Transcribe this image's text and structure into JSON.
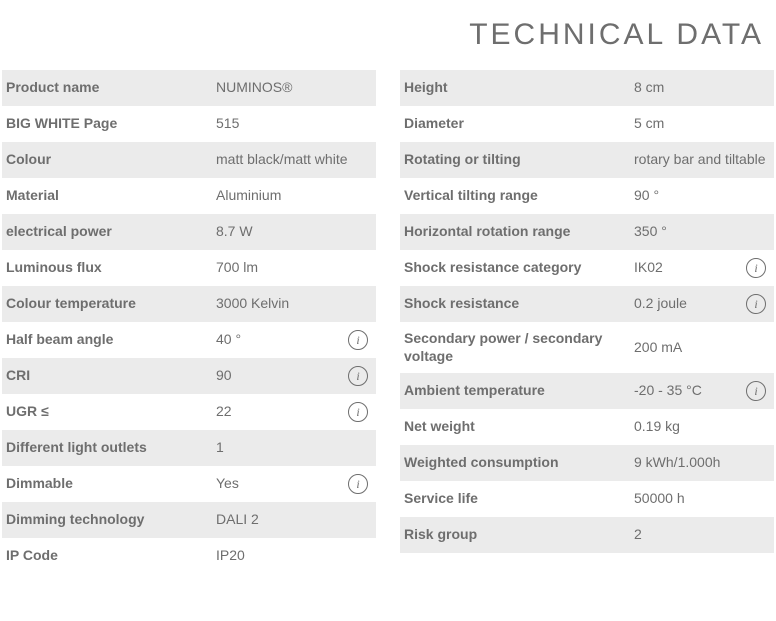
{
  "title": "TECHNICAL DATA",
  "colors": {
    "row_bg_odd": "#ebebeb",
    "row_bg_even": "#ffffff",
    "text": "#6e6e6e"
  },
  "left": [
    {
      "label": "Product name",
      "value": "NUMINOS®",
      "info": false
    },
    {
      "label": "BIG WHITE Page",
      "value": "515",
      "info": false
    },
    {
      "label": "Colour",
      "value": "matt black/matt white",
      "info": false
    },
    {
      "label": "Material",
      "value": "Aluminium",
      "info": false
    },
    {
      "label": "electrical power",
      "value": "8.7 W",
      "info": false
    },
    {
      "label": "Luminous flux",
      "value": "700 lm",
      "info": false
    },
    {
      "label": "Colour temperature",
      "value": "3000 Kelvin",
      "info": false
    },
    {
      "label": "Half beam angle",
      "value": "40 °",
      "info": true
    },
    {
      "label": "CRI",
      "value": "90",
      "info": true
    },
    {
      "label": "UGR ≤",
      "value": "22",
      "info": true
    },
    {
      "label": "Different light outlets",
      "value": "1",
      "info": false
    },
    {
      "label": "Dimmable",
      "value": "Yes",
      "info": true
    },
    {
      "label": "Dimming technology",
      "value": "DALI 2",
      "info": false
    },
    {
      "label": "IP Code",
      "value": "IP20",
      "info": false
    }
  ],
  "right": [
    {
      "label": "Height",
      "value": "8 cm",
      "info": false
    },
    {
      "label": "Diameter",
      "value": "5 cm",
      "info": false
    },
    {
      "label": "Rotating or tilting",
      "value": "rotary bar and tiltable",
      "info": false
    },
    {
      "label": "Vertical tilting range",
      "value": "90 °",
      "info": false
    },
    {
      "label": "Horizontal rotation range",
      "value": "350 °",
      "info": false
    },
    {
      "label": "Shock resistance category",
      "value": "IK02",
      "info": true
    },
    {
      "label": "Shock resistance",
      "value": "0.2 joule",
      "info": true
    },
    {
      "label": "Secondary power / sec­ondary voltage",
      "value": "200 mA",
      "info": false
    },
    {
      "label": "Ambient temperature",
      "value": "-20 - 35 °C",
      "info": true
    },
    {
      "label": "Net weight",
      "value": "0.19 kg",
      "info": false
    },
    {
      "label": "Weighted consumption",
      "value": "9 kWh/1.000h",
      "info": false
    },
    {
      "label": "Service life",
      "value": "50000 h",
      "info": false
    },
    {
      "label": "Risk group",
      "value": "2",
      "info": false
    }
  ]
}
